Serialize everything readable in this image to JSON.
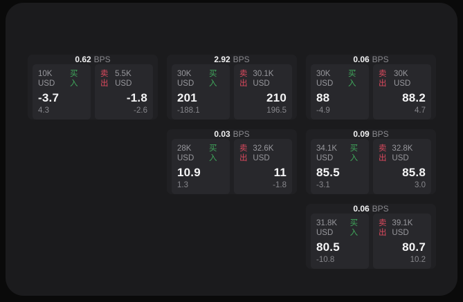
{
  "labels": {
    "buy": "买入",
    "sell": "卖出",
    "bps_unit": "BPS"
  },
  "colors": {
    "page_bg": "#0a0a0a",
    "panel_bg": "#1b1b1d",
    "card_bg": "#202023",
    "tile_bg": "#28282c",
    "buy_green": "#40a85c",
    "sell_red": "#dd4a5e",
    "value_white": "#f5f5f6",
    "muted_gray": "#98989d"
  },
  "cards": [
    {
      "bps": "0.62",
      "buy": {
        "amount": "10K USD",
        "price": "-3.7",
        "delta": "4.3"
      },
      "sell": {
        "amount": "5.5K USD",
        "price": "-1.8",
        "delta": "-2.6"
      }
    },
    {
      "bps": "2.92",
      "buy": {
        "amount": "30K USD",
        "price": "201",
        "delta": "-188.1"
      },
      "sell": {
        "amount": "30.1K USD",
        "price": "210",
        "delta": "196.5"
      }
    },
    {
      "bps": "0.06",
      "buy": {
        "amount": "30K USD",
        "price": "88",
        "delta": "-4.9"
      },
      "sell": {
        "amount": "30K USD",
        "price": "88.2",
        "delta": "4.7"
      }
    },
    {
      "bps": "0.03",
      "buy": {
        "amount": "28K USD",
        "price": "10.9",
        "delta": "1.3"
      },
      "sell": {
        "amount": "32.6K USD",
        "price": "11",
        "delta": "-1.8"
      }
    },
    {
      "bps": "0.09",
      "buy": {
        "amount": "34.1K USD",
        "price": "85.5",
        "delta": "-3.1"
      },
      "sell": {
        "amount": "32.8K USD",
        "price": "85.8",
        "delta": "3.0"
      }
    },
    {
      "bps": "0.06",
      "buy": {
        "amount": "31.8K USD",
        "price": "80.5",
        "delta": "-10.8"
      },
      "sell": {
        "amount": "39.1K USD",
        "price": "80.7",
        "delta": "10.2"
      }
    }
  ]
}
